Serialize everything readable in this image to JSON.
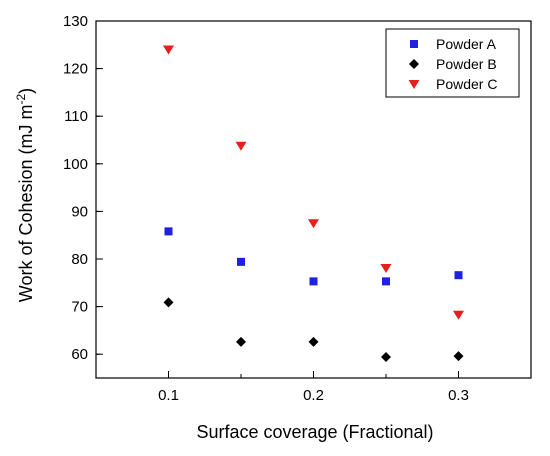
{
  "chart_data": {
    "type": "scatter",
    "title": "",
    "xlabel": "Surface coverage (Fractional)",
    "ylabel": "Work of Cohesion (mJ m",
    "ylabel_superscript": "-2",
    "ylabel_suffix": ")",
    "xlim": [
      0.05,
      0.35
    ],
    "ylim": [
      55,
      130
    ],
    "x_ticks": [
      0.1,
      0.2,
      0.3
    ],
    "x_tick_labels": [
      "0.1",
      "0.2",
      "0.3"
    ],
    "x_minor_ticks": [
      0.15,
      0.25
    ],
    "y_ticks": [
      60,
      70,
      80,
      90,
      100,
      110,
      120,
      130
    ],
    "y_tick_labels": [
      "60",
      "70",
      "80",
      "90",
      "100",
      "110",
      "120",
      "130"
    ],
    "grid": false,
    "legend_position": "top-right",
    "x": [
      0.1,
      0.15,
      0.2,
      0.25,
      0.3
    ],
    "series": [
      {
        "name": "Powder A",
        "marker": "square",
        "color": "#1f1fe6",
        "values": [
          85.8,
          79.4,
          75.3,
          75.3,
          76.6
        ]
      },
      {
        "name": "Powder B",
        "marker": "diamond",
        "color": "#000000",
        "values": [
          70.9,
          62.6,
          62.6,
          59.4,
          59.6
        ]
      },
      {
        "name": "Powder C",
        "marker": "triangle-down",
        "color": "#e61f1f",
        "values": [
          124.0,
          103.8,
          87.5,
          78.1,
          68.3
        ]
      }
    ]
  }
}
